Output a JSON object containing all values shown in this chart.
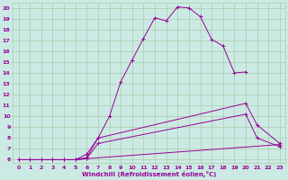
{
  "background_color": "#cceae4",
  "line_color": "#990099",
  "grid_color": "#aaccaa",
  "xlabel": "Windchill (Refroidissement éolien,°C)",
  "xlim": [
    -0.5,
    23.5
  ],
  "ylim": [
    5.7,
    20.5
  ],
  "xticks": [
    0,
    1,
    2,
    3,
    4,
    5,
    6,
    7,
    8,
    9,
    10,
    11,
    12,
    13,
    14,
    15,
    16,
    17,
    18,
    19,
    20,
    21,
    22,
    23
  ],
  "yticks": [
    6,
    7,
    8,
    9,
    10,
    11,
    12,
    13,
    14,
    15,
    16,
    17,
    18,
    19,
    20
  ],
  "curve1_x": [
    0,
    1,
    2,
    3,
    4,
    5,
    6,
    7,
    8,
    9,
    10,
    11,
    12,
    13,
    14,
    15,
    16,
    17,
    18,
    19,
    20
  ],
  "curve1_y": [
    6,
    6,
    6,
    6,
    6,
    6,
    6.5,
    8,
    10,
    13.2,
    15.2,
    17.2,
    19.1,
    18.8,
    20.1,
    20.0,
    19.2,
    17.1,
    16.5,
    14.0,
    14.1
  ],
  "curve2_x": [
    0,
    1,
    2,
    3,
    4,
    5,
    6,
    7,
    20,
    21,
    23
  ],
  "curve2_y": [
    6,
    6,
    6,
    6,
    6,
    6,
    6.2,
    8.0,
    11.2,
    9.2,
    7.5
  ],
  "curve3_x": [
    0,
    1,
    2,
    3,
    4,
    5,
    6,
    7,
    20,
    21,
    23
  ],
  "curve3_y": [
    6,
    6,
    6,
    6,
    6,
    6,
    6.1,
    7.5,
    10.2,
    8.0,
    7.2
  ],
  "curve4_x": [
    0,
    1,
    2,
    3,
    4,
    5,
    6,
    23
  ],
  "curve4_y": [
    6,
    6,
    6,
    6,
    6,
    6,
    6.1,
    7.4
  ]
}
